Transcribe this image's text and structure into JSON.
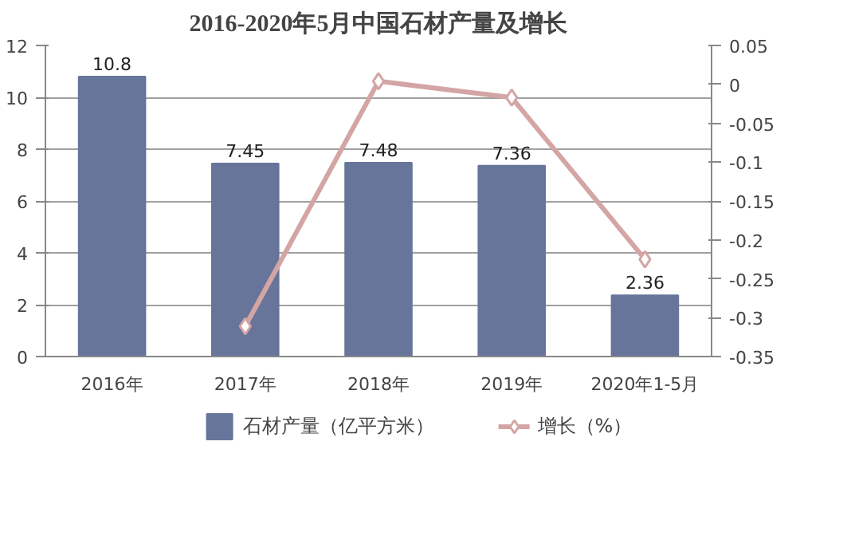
{
  "chart_data": {
    "type": "bar",
    "title": "2016-2020年5月中国石材产量及增长",
    "categories": [
      "2016年",
      "2017年",
      "2018年",
      "2019年",
      "2020年1-5月"
    ],
    "series": [
      {
        "name": "石材产量（亿平方米）",
        "color": "#67759a",
        "values": [
          10.8,
          7.45,
          7.48,
          7.36,
          2.36
        ],
        "value_labels": [
          "10.8",
          "7.45",
          "7.48",
          "7.36",
          "2.36"
        ]
      },
      {
        "name": "增长（%）",
        "type": "line",
        "axis": "y2",
        "color": "#d4a5a5",
        "marker": "diamond",
        "values": [
          null,
          -0.311,
          0.004,
          -0.017,
          -0.225
        ]
      }
    ],
    "ylim": [
      0,
      12
    ],
    "yticks": [
      0,
      2,
      4,
      6,
      8,
      10,
      12
    ],
    "y2lim": [
      -0.35,
      0.05
    ],
    "y2ticks": [
      -0.35,
      -0.3,
      -0.25,
      -0.2,
      -0.15,
      -0.1,
      -0.05,
      0,
      0.05
    ],
    "grid": "y",
    "legend": "bottom"
  }
}
